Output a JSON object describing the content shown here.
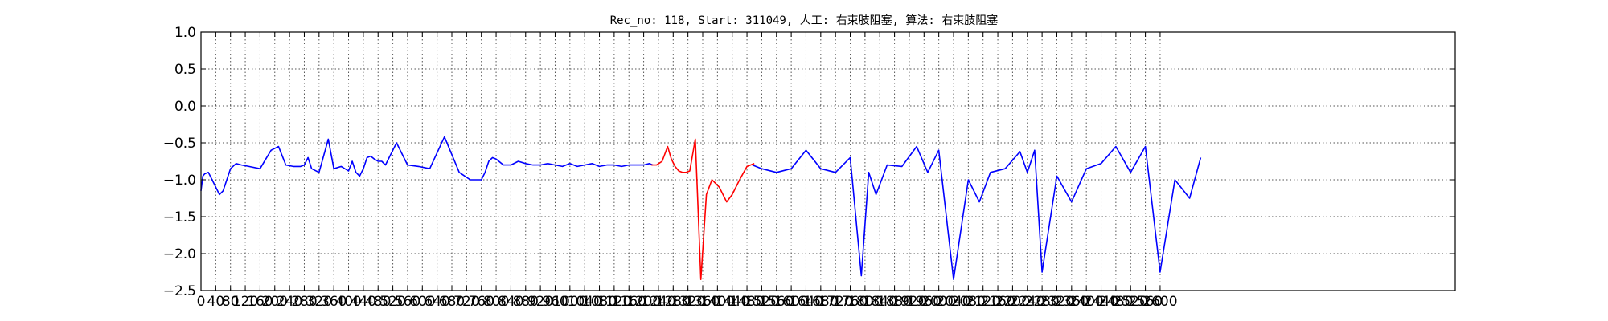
{
  "chart_data": {
    "type": "line",
    "title": "Rec_no: 118, Start: 311049, 人工: 右束肢阻塞, 算法: 右束肢阻塞",
    "xlabel": "",
    "ylabel": "",
    "xlim": [
      0,
      3400
    ],
    "ylim": [
      -2.5,
      1.0
    ],
    "grid": true,
    "grid_style": "dotted",
    "x_ticks": [
      0,
      40,
      80,
      120,
      160,
      200,
      240,
      280,
      320,
      360,
      400,
      440,
      480,
      520,
      560,
      600,
      640,
      680,
      720,
      760,
      800,
      840,
      880,
      920,
      960,
      1000,
      1040,
      1080,
      1120,
      1160,
      1200,
      1240,
      1280,
      1320,
      1360,
      1400,
      1440,
      1480,
      1520,
      1560,
      1600,
      1640,
      1680,
      1720,
      1760,
      1800,
      1840,
      1880,
      1920,
      1960,
      2000,
      2040,
      2080,
      2120,
      2160,
      2200,
      2240,
      2280,
      2320,
      2360,
      2400,
      2440,
      2480,
      2520,
      2560,
      2600
    ],
    "y_ticks": [
      1.0,
      0.5,
      0.0,
      -0.5,
      -1.0,
      -1.5,
      -2.0,
      -2.5
    ],
    "y_tick_labels": [
      "1.0",
      "0.5",
      "0.0",
      "−0.5",
      "−1.0",
      "−1.5",
      "−2.0",
      "−2.5"
    ],
    "series": [
      {
        "color": "#0000ff",
        "x": [
          0,
          5,
          10,
          20,
          30,
          40,
          50,
          60,
          70,
          80,
          95,
          110,
          130,
          160,
          190,
          210,
          230,
          250,
          270,
          280,
          290,
          300,
          320,
          345,
          360,
          380,
          400,
          410,
          420,
          430,
          440,
          450,
          460,
          470,
          480,
          490,
          500,
          510,
          530,
          560,
          590,
          620,
          660,
          700,
          730,
          760,
          770,
          780,
          790,
          800,
          820,
          840,
          860,
          880,
          900,
          920,
          940,
          960,
          980,
          1000,
          1020,
          1040,
          1060,
          1080,
          1100,
          1120,
          1140,
          1160,
          1180,
          1200,
          1215,
          1225
        ],
        "y": [
          -1.15,
          -0.95,
          -0.92,
          -0.9,
          -1.0,
          -1.1,
          -1.2,
          -1.15,
          -1.0,
          -0.85,
          -0.78,
          -0.8,
          -0.82,
          -0.85,
          -0.6,
          -0.55,
          -0.8,
          -0.82,
          -0.82,
          -0.8,
          -0.7,
          -0.85,
          -0.9,
          -0.45,
          -0.85,
          -0.82,
          -0.88,
          -0.75,
          -0.9,
          -0.95,
          -0.85,
          -0.7,
          -0.68,
          -0.72,
          -0.75,
          -0.75,
          -0.8,
          -0.7,
          -0.5,
          -0.8,
          -0.82,
          -0.85,
          -0.42,
          -0.9,
          -1.0,
          -1.0,
          -0.9,
          -0.75,
          -0.7,
          -0.72,
          -0.8,
          -0.8,
          -0.75,
          -0.78,
          -0.8,
          -0.8,
          -0.78,
          -0.8,
          -0.82,
          -0.78,
          -0.82,
          -0.8,
          -0.78,
          -0.82,
          -0.8,
          -0.8,
          -0.82,
          -0.8,
          -0.8,
          -0.8,
          -0.78,
          -0.8
        ]
      },
      {
        "color": "#ff0000",
        "x": [
          1220,
          1235,
          1250,
          1265,
          1275,
          1285,
          1295,
          1305,
          1315,
          1325,
          1340,
          1355,
          1370,
          1385,
          1395,
          1405,
          1425,
          1440,
          1460,
          1480,
          1500
        ],
        "y": [
          -0.8,
          -0.8,
          -0.75,
          -0.55,
          -0.72,
          -0.82,
          -0.88,
          -0.9,
          -0.9,
          -0.88,
          -0.45,
          -2.35,
          -1.2,
          -1.0,
          -1.05,
          -1.1,
          -1.3,
          -1.2,
          -1.0,
          -0.82,
          -0.78
        ]
      },
      {
        "color": "#0000ff",
        "x": [
          1495,
          1520,
          1560,
          1600,
          1640,
          1680,
          1720,
          1760,
          1790,
          1810,
          1830,
          1860,
          1900,
          1940,
          1970,
          2000,
          2040,
          2080,
          2110,
          2140,
          2180,
          2220,
          2240,
          2260,
          2280,
          2320,
          2360,
          2400,
          2440,
          2480,
          2520,
          2560,
          2600,
          2640,
          2680,
          2710
        ],
        "y": [
          -0.8,
          -0.85,
          -0.9,
          -0.85,
          -0.6,
          -0.85,
          -0.9,
          -0.7,
          -2.3,
          -0.9,
          -1.2,
          -0.8,
          -0.82,
          -0.55,
          -0.9,
          -0.6,
          -2.35,
          -1.0,
          -1.3,
          -0.9,
          -0.85,
          -0.62,
          -0.9,
          -0.6,
          -2.25,
          -0.95,
          -1.3,
          -0.85,
          -0.78,
          -0.55,
          -0.9,
          -0.55,
          -2.25,
          -1.0,
          -1.25,
          -0.7
        ]
      }
    ]
  }
}
